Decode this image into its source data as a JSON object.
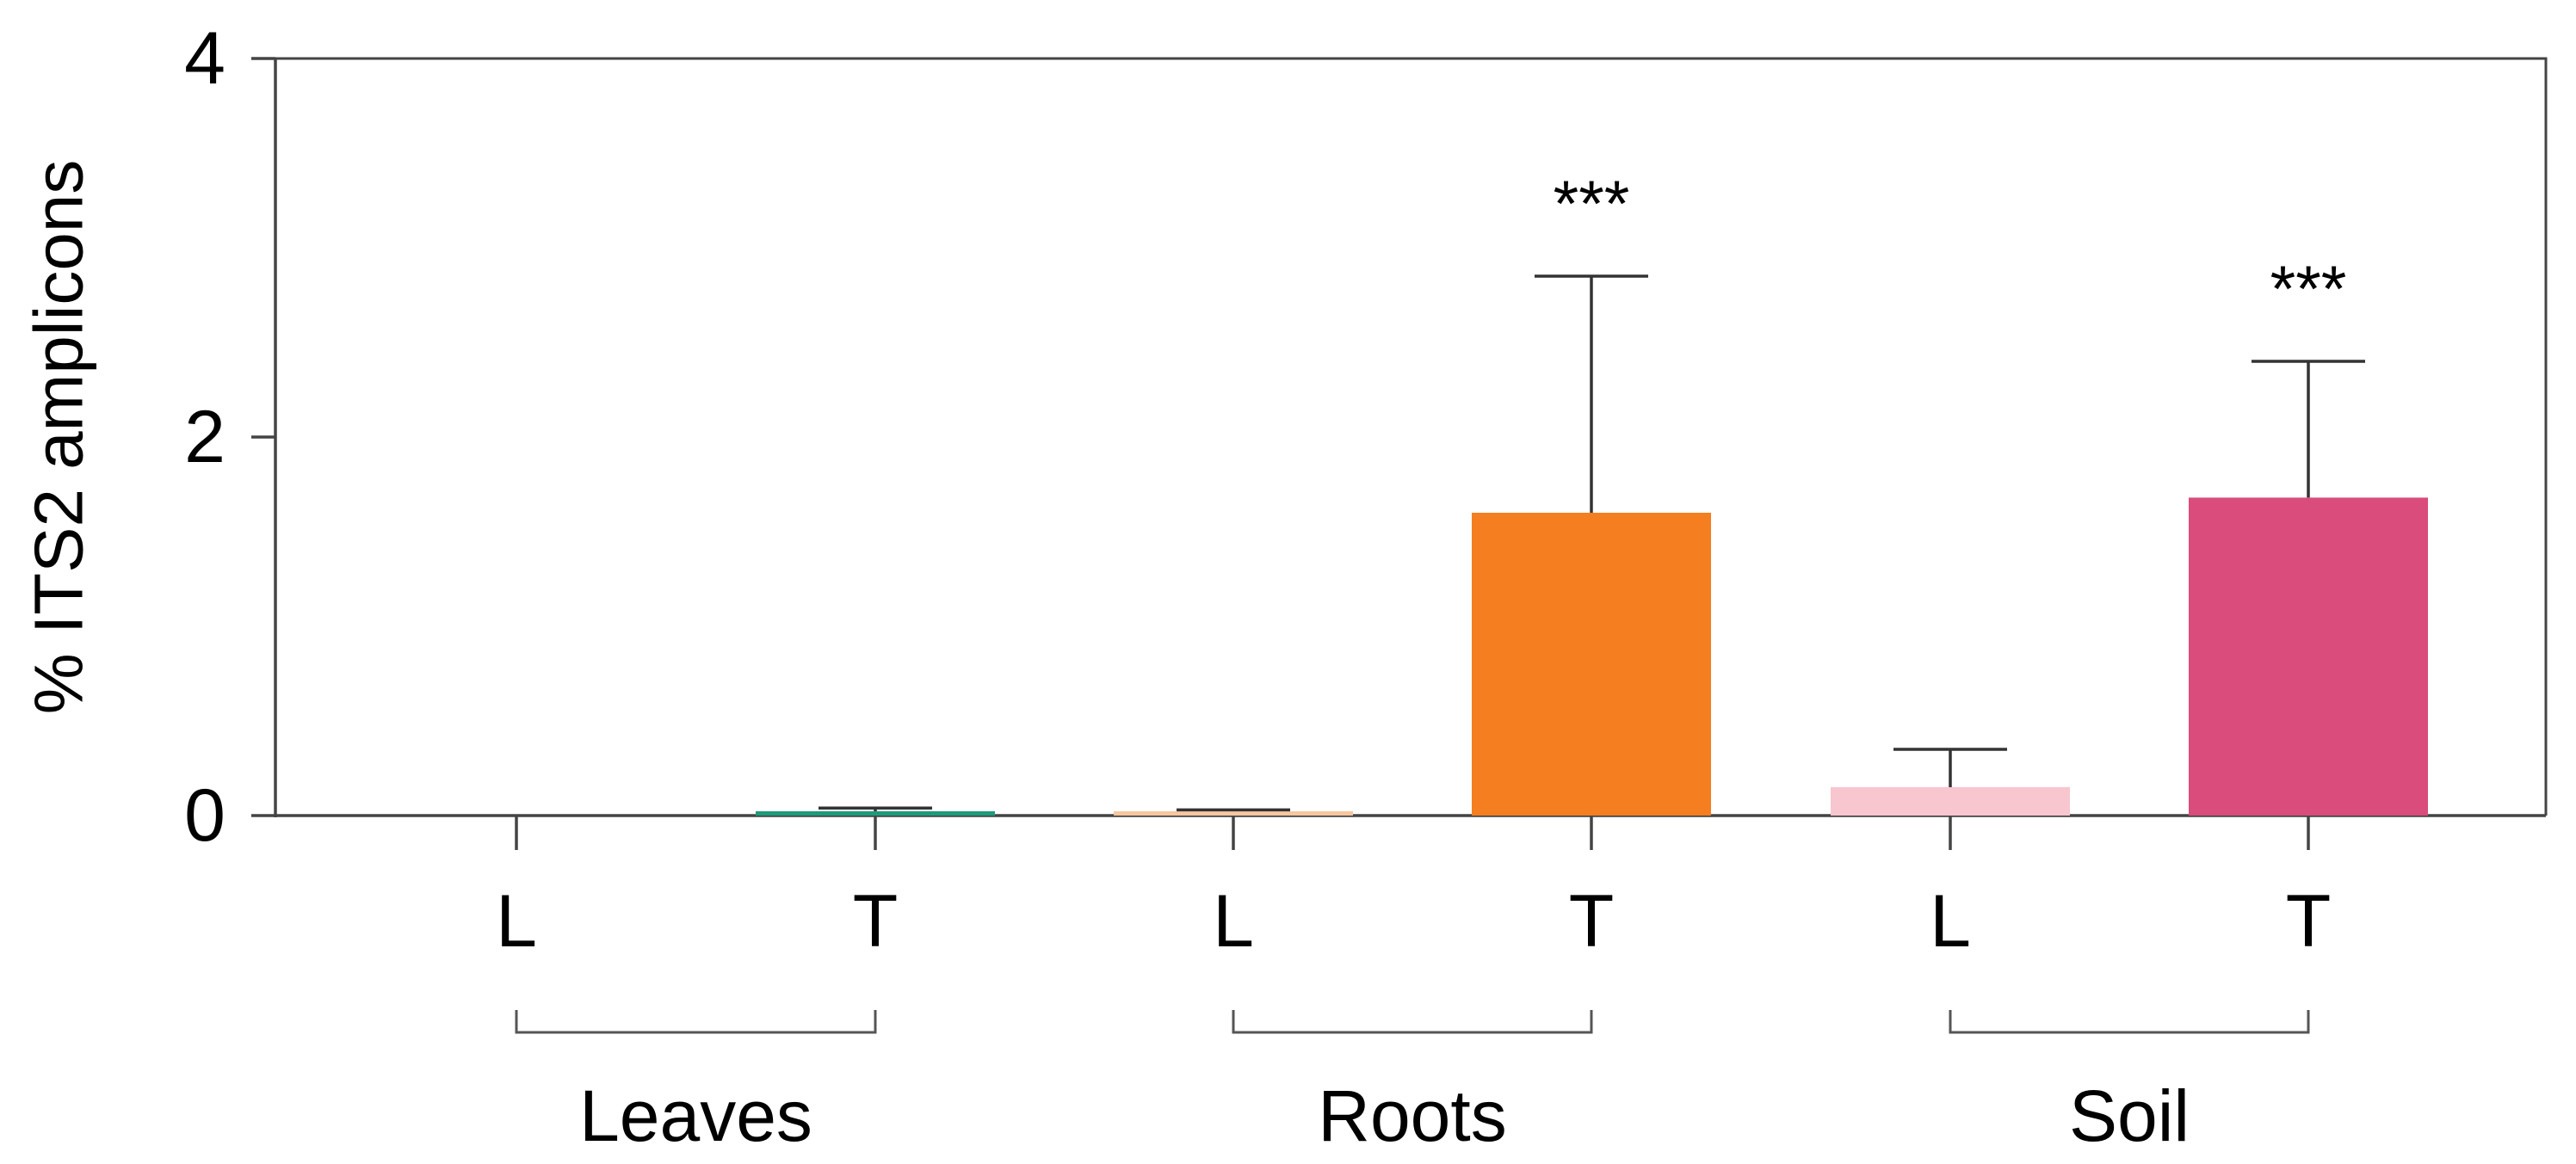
{
  "chart_data": {
    "type": "bar",
    "ylabel": "% ITS2 amplicons",
    "xlabel": "",
    "ylim": [
      0,
      4
    ],
    "yticks": [
      "0",
      "2",
      "4"
    ],
    "grid": false,
    "bars": [
      {
        "group": "Leaves",
        "label": "L",
        "value": 0.0,
        "error": 0.0,
        "color": "#1f9a7a",
        "sig": ""
      },
      {
        "group": "Leaves",
        "label": "T",
        "value": 0.02,
        "error": 0.02,
        "color": "#1f9a7a",
        "sig": ""
      },
      {
        "group": "Roots",
        "label": "L",
        "value": 0.01,
        "error": 0.02,
        "color": "#f7c7a0",
        "sig": ""
      },
      {
        "group": "Roots",
        "label": "T",
        "value": 1.6,
        "error": 1.25,
        "color": "#f47e20",
        "sig": "***"
      },
      {
        "group": "Soil",
        "label": "L",
        "value": 0.15,
        "error": 0.2,
        "color": "#f7c6cf",
        "sig": ""
      },
      {
        "group": "Soil",
        "label": "T",
        "value": 1.68,
        "error": 0.72,
        "color": "#d94c7c",
        "sig": "***"
      }
    ],
    "groups": [
      "Leaves",
      "Roots",
      "Soil"
    ]
  }
}
